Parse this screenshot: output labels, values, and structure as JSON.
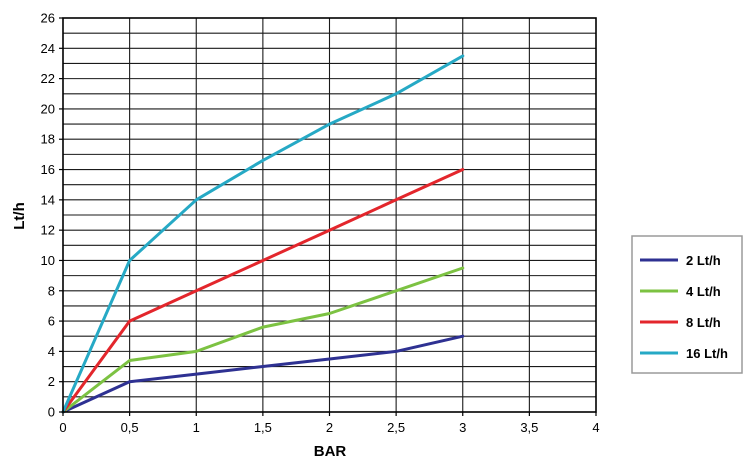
{
  "chart_data": {
    "type": "line",
    "title": "",
    "xlabel": "BAR",
    "ylabel": "Lt/h",
    "xlim": [
      0,
      4
    ],
    "ylim": [
      0,
      26
    ],
    "x_ticks": [
      0,
      0.5,
      1,
      1.5,
      2,
      2.5,
      3,
      3.5,
      4
    ],
    "x_tick_labels": [
      "0",
      "0,5",
      "1",
      "1,5",
      "2",
      "2,5",
      "3",
      "3,5",
      "4"
    ],
    "y_ticks": [
      0,
      2,
      4,
      6,
      8,
      10,
      12,
      14,
      16,
      18,
      20,
      22,
      24,
      26
    ],
    "y_tick_labels": [
      "0",
      "2",
      "4",
      "6",
      "8",
      "10",
      "12",
      "14",
      "16",
      "18",
      "20",
      "22",
      "24",
      "26"
    ],
    "grid": true,
    "legend_position": "right",
    "series": [
      {
        "name": "2 Lt/h",
        "color": "#2e3192",
        "points": [
          [
            0,
            0
          ],
          [
            0.5,
            2
          ],
          [
            1,
            2.5
          ],
          [
            1.5,
            3
          ],
          [
            2,
            3.5
          ],
          [
            2.5,
            4
          ],
          [
            3,
            5
          ]
        ]
      },
      {
        "name": "4 Lt/h",
        "color": "#7cc242",
        "points": [
          [
            0,
            0
          ],
          [
            0.5,
            3.4
          ],
          [
            1,
            4
          ],
          [
            1.5,
            5.6
          ],
          [
            2,
            6.5
          ],
          [
            2.5,
            8
          ],
          [
            3,
            9.5
          ]
        ]
      },
      {
        "name": "8 Lt/h",
        "color": "#e3262c",
        "points": [
          [
            0,
            0
          ],
          [
            0.5,
            6
          ],
          [
            1,
            8
          ],
          [
            1.5,
            10
          ],
          [
            2,
            12
          ],
          [
            2.5,
            14
          ],
          [
            3,
            16
          ]
        ]
      },
      {
        "name": "16 Lt/h",
        "color": "#26a9c5",
        "points": [
          [
            0,
            0
          ],
          [
            0.5,
            10
          ],
          [
            1,
            14
          ],
          [
            1.5,
            16.6
          ],
          [
            2,
            19
          ],
          [
            2.5,
            21
          ],
          [
            3,
            23.5
          ]
        ]
      }
    ]
  }
}
